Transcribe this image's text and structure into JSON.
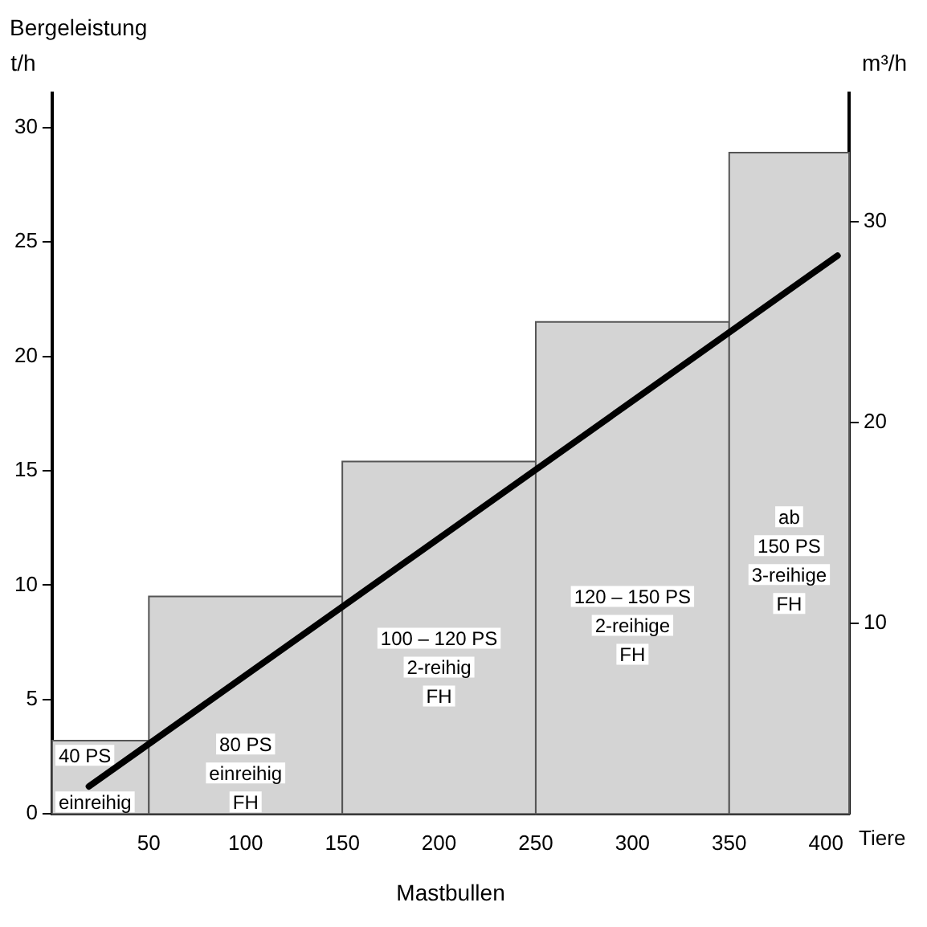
{
  "chart_data": {
    "type": "histogram",
    "title": "Bergeleistung",
    "ylabel": "t/h",
    "y2label": "m³/h",
    "xlabel": "Mastbullen",
    "bins": [
      0,
      50,
      150,
      250,
      350,
      412
    ],
    "values": [
      3.2,
      9.5,
      15.4,
      21.5,
      28.9
    ],
    "color": "#d4d4d4",
    "series": [
      {
        "type": "line",
        "x": [
          19,
          406
        ],
        "values": [
          1.2,
          24.4
        ],
        "color": "#000000"
      }
    ],
    "xlim": [
      0,
      412
    ],
    "xticks": [
      50,
      100,
      150,
      200,
      250,
      300,
      350,
      400
    ],
    "ylim": [
      0,
      31.5
    ],
    "yticks": [
      0,
      5,
      10,
      15,
      20,
      25,
      30
    ],
    "y2lim": [
      0.5,
      36.4
    ],
    "y2ticks": [
      10,
      20,
      30
    ],
    "grid": false,
    "legend": false,
    "marker": "none",
    "line_style": "solid",
    "annotations": [
      "Tiere",
      "40 PS\neinreihig",
      "80 PS\neinreihig\nFH",
      "100 – 120 PS\n2-reihig\nFH",
      "120 – 150 PS\n2-reihige\nFH",
      "ab\n150 PS\n3-reihige\nFH"
    ]
  }
}
